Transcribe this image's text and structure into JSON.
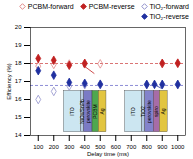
{
  "chart_data": {
    "type": "scatter",
    "xlabel": "Delay time (ms)",
    "ylabel": "Efficiency (%)",
    "xlim": [
      50,
      1050
    ],
    "ylim": [
      14,
      20
    ],
    "xticks": [
      100,
      200,
      300,
      400,
      500,
      600,
      700,
      800,
      900,
      1000
    ],
    "yticks": [
      14,
      15,
      16,
      17,
      18,
      19,
      20
    ],
    "legend": "upper right",
    "series": [
      {
        "name": "PCBM-forward",
        "color": "#e08888",
        "marker": "open_diamond",
        "x": [
          100,
          200,
          300,
          400,
          500,
          900,
          1000
        ],
        "values": [
          17.85,
          17.95,
          17.97,
          17.98,
          17.98,
          17.99,
          18.0
        ]
      },
      {
        "name": "PCBM-reverse",
        "color": "#c02020",
        "marker": "diamond",
        "x": [
          100,
          200,
          300,
          400,
          900,
          1000
        ],
        "values": [
          18.28,
          18.18,
          17.9,
          18.01,
          18.01,
          18.02
        ]
      },
      {
        "name": "TiO₂-forward",
        "color": "#9090cc",
        "marker": "open_diamond",
        "x": [
          100,
          200,
          300,
          400,
          500,
          800,
          900,
          1000
        ],
        "values": [
          16.0,
          16.45,
          16.75,
          16.82,
          16.82,
          16.82,
          16.82,
          16.82
        ]
      },
      {
        "name": "TiO₂-reverse",
        "color": "#2030a0",
        "marker": "diamond",
        "x": [
          100,
          200,
          300,
          400,
          500,
          800,
          850,
          900,
          1000
        ],
        "values": [
          17.6,
          17.35,
          16.95,
          16.9,
          16.85,
          16.84,
          16.84,
          16.84,
          16.84
        ]
      }
    ],
    "reference_lines": [
      {
        "y": 18.0,
        "color": "#d05050",
        "line_style": "dashed"
      },
      {
        "y": 16.78,
        "color": "#7070cc",
        "line_style": "dashed"
      }
    ],
    "arrows": [
      {
        "x": [
          460,
          390
        ],
        "y": [
          17.45,
          17.9
        ],
        "color": "#c02020"
      },
      {
        "x": [
          895,
          845
        ],
        "y": [
          16.62,
          16.84
        ],
        "color": "#2030a0"
      }
    ],
    "stacks": [
      {
        "x_start": 265,
        "base": 14.18,
        "height": 2.3,
        "layers": [
          {
            "label": "ITO",
            "color": "#c8e4f0",
            "width": 110
          },
          {
            "label": "NiOx/SnPb",
            "color": "#b0c8e0",
            "width": 20
          },
          {
            "label": "perovskite",
            "color": "#7070c0",
            "width": 55
          },
          {
            "label": "PCBM",
            "color": "#40a040",
            "width": 40
          },
          {
            "label": "Ag",
            "color": "#e0c030",
            "width": 50
          }
        ]
      },
      {
        "x_start": 660,
        "base": 14.18,
        "height": 2.3,
        "layers": [
          {
            "label": "ITO",
            "color": "#c8e4f0",
            "width": 110
          },
          {
            "label": "TiO2",
            "color": "#b0c8e0",
            "width": 20
          },
          {
            "label": "perovskite",
            "color": "#7878c8",
            "width": 55
          },
          {
            "label": "spiro",
            "color": "#a060a0",
            "width": 40
          },
          {
            "label": "Ag",
            "color": "#e0c030",
            "width": 50
          }
        ]
      }
    ]
  }
}
